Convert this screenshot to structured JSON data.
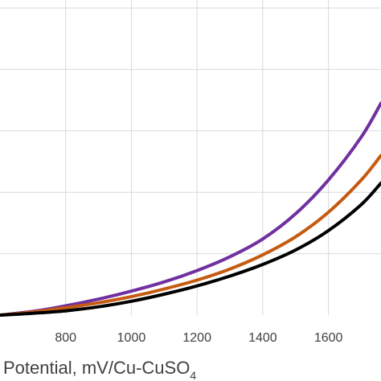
{
  "chart_data": {
    "type": "line",
    "title": "",
    "xlabel": "Potential, mV/Cu-CuSO",
    "xlabel_subscript": "4",
    "ylabel": "",
    "xlim": [
      600,
      1760
    ],
    "ylim": [
      0,
      1
    ],
    "x_ticks": [
      800,
      1000,
      1200,
      1400,
      1600
    ],
    "x_tick_labels": [
      "800",
      "1000",
      "1200",
      "1400",
      "1600"
    ],
    "y_gridlines": [
      0.2,
      0.4,
      0.6,
      0.8,
      1.0
    ],
    "grid": "both",
    "legend": "none",
    "series": [
      {
        "color": "#7030a0",
        "x": [
          600,
          700,
          800,
          900,
          1000,
          1100,
          1200,
          1300,
          1400,
          1500,
          1600,
          1700,
          1760
        ],
        "y": [
          0.0,
          0.012,
          0.03,
          0.052,
          0.078,
          0.108,
          0.145,
          0.19,
          0.248,
          0.33,
          0.44,
          0.58,
          0.69
        ]
      },
      {
        "color": "#c55a11",
        "x": [
          600,
          700,
          800,
          900,
          1000,
          1100,
          1200,
          1300,
          1400,
          1500,
          1600,
          1700,
          1760
        ],
        "y": [
          0.0,
          0.01,
          0.024,
          0.04,
          0.06,
          0.085,
          0.114,
          0.15,
          0.196,
          0.255,
          0.335,
          0.44,
          0.52
        ]
      },
      {
        "color": "#000000",
        "x": [
          600,
          700,
          800,
          900,
          1000,
          1100,
          1200,
          1300,
          1400,
          1500,
          1600,
          1700,
          1760
        ],
        "y": [
          0.0,
          0.006,
          0.014,
          0.027,
          0.045,
          0.068,
          0.095,
          0.127,
          0.165,
          0.212,
          0.275,
          0.36,
          0.43
        ]
      }
    ]
  }
}
